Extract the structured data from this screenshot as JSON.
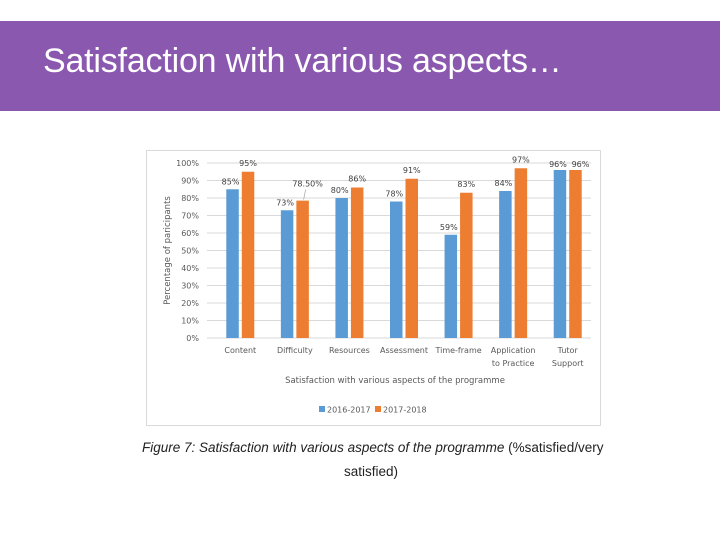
{
  "slide": {
    "title": "Satisfaction with various aspects…",
    "title_bar_color": "#8b58b0"
  },
  "caption": {
    "italic_part": "Figure 7: Satisfaction with various aspects of the programme",
    "plain_part_line1": " (%satisfied/very",
    "plain_part_line2": "satisfied)"
  },
  "chart_data": {
    "type": "bar",
    "title": "",
    "xlabel": "Satisfaction with various aspects of the programme",
    "ylabel": "Percentage of paricipants",
    "ylim": [
      0,
      100
    ],
    "yticks": [
      "0%",
      "10%",
      "20%",
      "30%",
      "40%",
      "50%",
      "60%",
      "70%",
      "80%",
      "90%",
      "100%"
    ],
    "grid": true,
    "legend_position": "bottom",
    "categories": [
      "Content",
      "Difficulty",
      "Resources",
      "Assessment",
      "Time-frame",
      "Application to Practice",
      "Tutor Support"
    ],
    "category_lines": [
      [
        "Content"
      ],
      [
        "Difficulty"
      ],
      [
        "Resources"
      ],
      [
        "Assessment"
      ],
      [
        "Time-frame"
      ],
      [
        "Application",
        "to Practice"
      ],
      [
        "Tutor",
        "Support"
      ]
    ],
    "series": [
      {
        "name": "2016-2017",
        "color": "#5b9bd5",
        "values": [
          85,
          73,
          80,
          78,
          59,
          84,
          96
        ],
        "labels": [
          "85%",
          "73%",
          "80%",
          "78%",
          "59%",
          "84%",
          "96%"
        ]
      },
      {
        "name": "2017-2018",
        "color": "#ed7d31",
        "values": [
          95,
          78.5,
          86,
          91,
          83,
          97,
          96
        ],
        "labels": [
          "95%",
          "78.50%",
          "86%",
          "91%",
          "83%",
          "97%",
          "96%"
        ]
      }
    ]
  }
}
